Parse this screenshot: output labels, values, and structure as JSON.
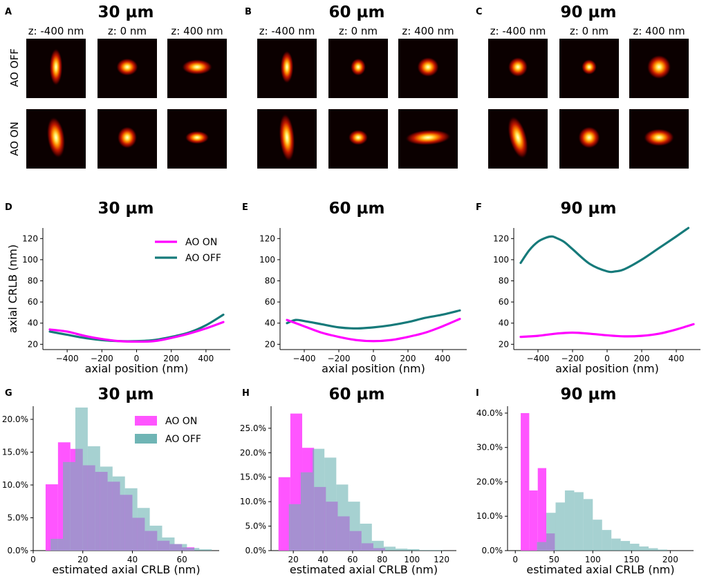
{
  "colors": {
    "ao_on": "#ff00ff",
    "ao_off": "#167a7a",
    "hist_on": "#ff55ff",
    "hist_off": "#6fb5b5",
    "hist_overlap": "#7e77bf",
    "psf_bg": "#0b0000"
  },
  "psf_panels": [
    {
      "letter": "A",
      "title": "30 µm",
      "z_labels": [
        "z: -400 nm",
        "z: 0 nm",
        "z: 400 nm"
      ],
      "row_labels": [
        "AO OFF",
        "AO ON"
      ]
    },
    {
      "letter": "B",
      "title": "60 µm",
      "z_labels": [
        "z: -400 nm",
        "z: 0 nm",
        "z: 400 nm"
      ]
    },
    {
      "letter": "C",
      "title": "90 µm",
      "z_labels": [
        "z: -400 nm",
        "z: 0 nm",
        "z: 400 nm"
      ]
    }
  ],
  "chart_data": [
    {
      "panel": "D",
      "type": "line",
      "title": "30 µm",
      "xlabel": "axial position (nm)",
      "ylabel": "axial CRLB (nm)",
      "xlim": [
        -540,
        540
      ],
      "ylim": [
        15,
        130
      ],
      "xticks": [
        -400,
        -200,
        0,
        200,
        400
      ],
      "yticks": [
        20,
        40,
        60,
        80,
        100,
        120
      ],
      "xtick_labels": [
        "−400",
        "−200",
        "0",
        "200",
        "400"
      ],
      "ytick_labels": [
        "20",
        "40",
        "60",
        "80",
        "100",
        "120"
      ],
      "legend": [
        "AO ON",
        "AO OFF"
      ],
      "series": [
        {
          "name": "AO ON",
          "x": [
            -500,
            -400,
            -300,
            -200,
            -100,
            0,
            100,
            200,
            300,
            400,
            500
          ],
          "y": [
            34,
            32,
            28,
            25,
            23,
            22.5,
            23,
            26,
            30,
            35,
            41
          ]
        },
        {
          "name": "AO OFF",
          "x": [
            -500,
            -400,
            -300,
            -200,
            -100,
            0,
            100,
            200,
            300,
            400,
            500
          ],
          "y": [
            32,
            29,
            26,
            24,
            23,
            23,
            24,
            27,
            31,
            38,
            48
          ]
        }
      ]
    },
    {
      "panel": "E",
      "type": "line",
      "title": "60 µm",
      "xlabel": "axial position (nm)",
      "ylabel": "",
      "xlim": [
        -540,
        540
      ],
      "ylim": [
        15,
        130
      ],
      "xticks": [
        -400,
        -200,
        0,
        200,
        400
      ],
      "yticks": [
        20,
        40,
        60,
        80,
        100,
        120
      ],
      "xtick_labels": [
        "−400",
        "−200",
        "0",
        "200",
        "400"
      ],
      "ytick_labels": [
        "20",
        "40",
        "60",
        "80",
        "100",
        "120"
      ],
      "series": [
        {
          "name": "AO ON",
          "x": [
            -500,
            -400,
            -300,
            -200,
            -100,
            0,
            100,
            200,
            300,
            400,
            500
          ],
          "y": [
            43,
            37,
            31,
            27,
            24,
            23,
            24,
            27,
            31,
            37,
            44
          ]
        },
        {
          "name": "AO OFF",
          "x": [
            -500,
            -450,
            -400,
            -300,
            -200,
            -100,
            0,
            100,
            200,
            300,
            400,
            500
          ],
          "y": [
            40,
            43,
            42,
            39,
            36,
            35,
            36,
            38,
            41,
            45,
            48,
            52
          ]
        }
      ]
    },
    {
      "panel": "F",
      "type": "line",
      "title": "90 µm",
      "xlabel": "axial position (nm)",
      "ylabel": "",
      "xlim": [
        -540,
        540
      ],
      "ylim": [
        15,
        130
      ],
      "xticks": [
        -400,
        -200,
        0,
        200,
        400
      ],
      "yticks": [
        20,
        40,
        60,
        80,
        100,
        120
      ],
      "xtick_labels": [
        "−400",
        "−200",
        "0",
        "200",
        "400"
      ],
      "ytick_labels": [
        "20",
        "40",
        "60",
        "80",
        "100",
        "120"
      ],
      "series": [
        {
          "name": "AO ON",
          "x": [
            -500,
            -400,
            -300,
            -200,
            -100,
            0,
            100,
            200,
            300,
            400,
            500
          ],
          "y": [
            27,
            28,
            30,
            31,
            30,
            28.5,
            27.5,
            28,
            30,
            34,
            39
          ]
        },
        {
          "name": "AO OFF",
          "x": [
            -500,
            -450,
            -400,
            -350,
            -320,
            -300,
            -250,
            -200,
            -100,
            0,
            50,
            100,
            200,
            300,
            400,
            470
          ],
          "y": [
            97,
            109,
            117,
            121,
            122,
            121,
            117,
            110,
            96,
            89,
            89,
            91,
            100,
            111,
            122,
            130
          ]
        }
      ]
    },
    {
      "panel": "G",
      "type": "bar",
      "title": "30 µm",
      "xlabel": "estimated axial CRLB (nm)",
      "ylabel": "",
      "xlim": [
        0,
        75
      ],
      "ylim": [
        0,
        0.22
      ],
      "xticks": [
        0,
        20,
        40,
        60
      ],
      "yticks": [
        0,
        0.05,
        0.1,
        0.15,
        0.2
      ],
      "xtick_labels": [
        "0",
        "20",
        "40",
        "60"
      ],
      "ytick_labels": [
        "0.0%",
        "5.0%",
        "10.0%",
        "15.0%",
        "20.0%"
      ],
      "legend": [
        "AO ON",
        "AO OFF"
      ],
      "series": [
        {
          "name": "AO ON",
          "bin_edges": [
            5,
            10,
            15,
            20,
            25,
            30,
            35,
            40,
            45,
            50,
            55,
            60,
            65
          ],
          "values": [
            0.101,
            0.165,
            0.155,
            0.13,
            0.12,
            0.105,
            0.085,
            0.05,
            0.03,
            0.015,
            0.01,
            0.005
          ]
        },
        {
          "name": "AO OFF",
          "bin_edges": [
            7,
            12,
            17,
            22,
            27,
            32,
            37,
            42,
            47,
            52,
            57,
            62,
            67,
            72
          ],
          "values": [
            0.018,
            0.135,
            0.218,
            0.159,
            0.128,
            0.113,
            0.095,
            0.065,
            0.038,
            0.02,
            0.01,
            0.004,
            0.002
          ]
        }
      ]
    },
    {
      "panel": "H",
      "type": "bar",
      "title": "60 µm",
      "xlabel": "estimated axial CRLB (nm)",
      "ylabel": "",
      "xlim": [
        5,
        130
      ],
      "ylim": [
        0,
        0.295
      ],
      "xticks": [
        20,
        40,
        60,
        80,
        100,
        120
      ],
      "yticks": [
        0,
        0.05,
        0.1,
        0.15,
        0.2,
        0.25
      ],
      "xtick_labels": [
        "20",
        "40",
        "60",
        "80",
        "100",
        "120"
      ],
      "ytick_labels": [
        "0.0%",
        "5.0%",
        "10.0%",
        "15.0%",
        "20.0%",
        "25.0%"
      ],
      "series": [
        {
          "name": "AO ON",
          "bin_edges": [
            10,
            18,
            26,
            34,
            42,
            50,
            58,
            66,
            74,
            82
          ],
          "values": [
            0.15,
            0.28,
            0.21,
            0.13,
            0.1,
            0.07,
            0.04,
            0.015,
            0.005
          ]
        },
        {
          "name": "AO OFF",
          "bin_edges": [
            17,
            25,
            33,
            41,
            49,
            57,
            65,
            73,
            81,
            89,
            97,
            105,
            113,
            121
          ],
          "values": [
            0.095,
            0.16,
            0.208,
            0.19,
            0.135,
            0.1,
            0.055,
            0.02,
            0.008,
            0.004,
            0.003,
            0.001,
            0.001
          ]
        }
      ]
    },
    {
      "panel": "I",
      "type": "bar",
      "title": "90 µm",
      "xlabel": "estimated axial CRLB (nm)",
      "ylabel": "",
      "xlim": [
        -10,
        230
      ],
      "ylim": [
        0,
        0.42
      ],
      "xticks": [
        0,
        50,
        100,
        150,
        200
      ],
      "yticks": [
        0,
        0.1,
        0.2,
        0.3,
        0.4
      ],
      "xtick_labels": [
        "0",
        "50",
        "100",
        "150",
        "200"
      ],
      "ytick_labels": [
        "0.0%",
        "10.0%",
        "20.0%",
        "30.0%",
        "40.0%"
      ],
      "series": [
        {
          "name": "AO ON",
          "bin_edges": [
            7,
            18,
            29,
            40,
            51
          ],
          "values": [
            0.4,
            0.175,
            0.24,
            0.05
          ]
        },
        {
          "name": "AO OFF",
          "bin_edges": [
            28,
            40,
            52,
            64,
            76,
            88,
            100,
            112,
            124,
            136,
            148,
            160,
            172,
            184,
            196
          ],
          "values": [
            0.025,
            0.11,
            0.14,
            0.175,
            0.17,
            0.15,
            0.09,
            0.06,
            0.035,
            0.028,
            0.02,
            0.012,
            0.007,
            0.003
          ]
        }
      ]
    }
  ]
}
